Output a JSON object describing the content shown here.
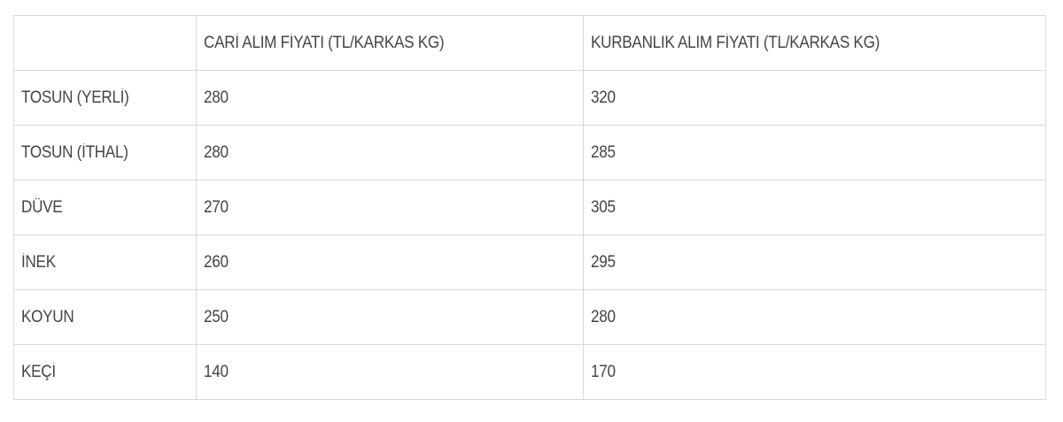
{
  "table": {
    "headers": [
      "",
      "CARİ ALIM FİYATI (TL/KARKAS KG)",
      "KURBANLIK ALIM FİYATI (TL/KARKAS KG)"
    ],
    "rows": [
      [
        "TOSUN (YERLİ)",
        "280",
        "320"
      ],
      [
        "TOSUN (İTHAL)",
        "280",
        "285"
      ],
      [
        "DÜVE",
        "270",
        "305"
      ],
      [
        "İNEK",
        "260",
        "295"
      ],
      [
        "KOYUN",
        "250",
        "280"
      ],
      [
        "KEÇİ",
        "140",
        "170"
      ]
    ]
  }
}
